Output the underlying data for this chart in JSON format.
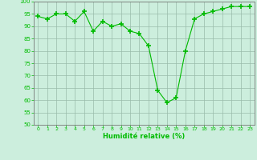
{
  "x": [
    0,
    1,
    2,
    3,
    4,
    5,
    6,
    7,
    8,
    9,
    10,
    11,
    12,
    13,
    14,
    15,
    16,
    17,
    18,
    19,
    20,
    21,
    22,
    23
  ],
  "y": [
    94,
    93,
    95,
    95,
    92,
    96,
    88,
    92,
    90,
    91,
    88,
    87,
    82,
    64,
    59,
    61,
    80,
    93,
    95,
    96,
    97,
    98,
    98,
    98
  ],
  "line_color": "#00bb00",
  "marker_color": "#00bb00",
  "bg_color": "#cceedd",
  "grid_color": "#99bbaa",
  "tick_color": "#00bb00",
  "xlabel": "Humidité relative (%)",
  "xlabel_color": "#00bb00",
  "ylim": [
    50,
    100
  ],
  "xlim": [
    -0.5,
    23.5
  ],
  "yticks": [
    50,
    55,
    60,
    65,
    70,
    75,
    80,
    85,
    90,
    95,
    100
  ],
  "xticks": [
    0,
    1,
    2,
    3,
    4,
    5,
    6,
    7,
    8,
    9,
    10,
    11,
    12,
    13,
    14,
    15,
    16,
    17,
    18,
    19,
    20,
    21,
    22,
    23
  ]
}
